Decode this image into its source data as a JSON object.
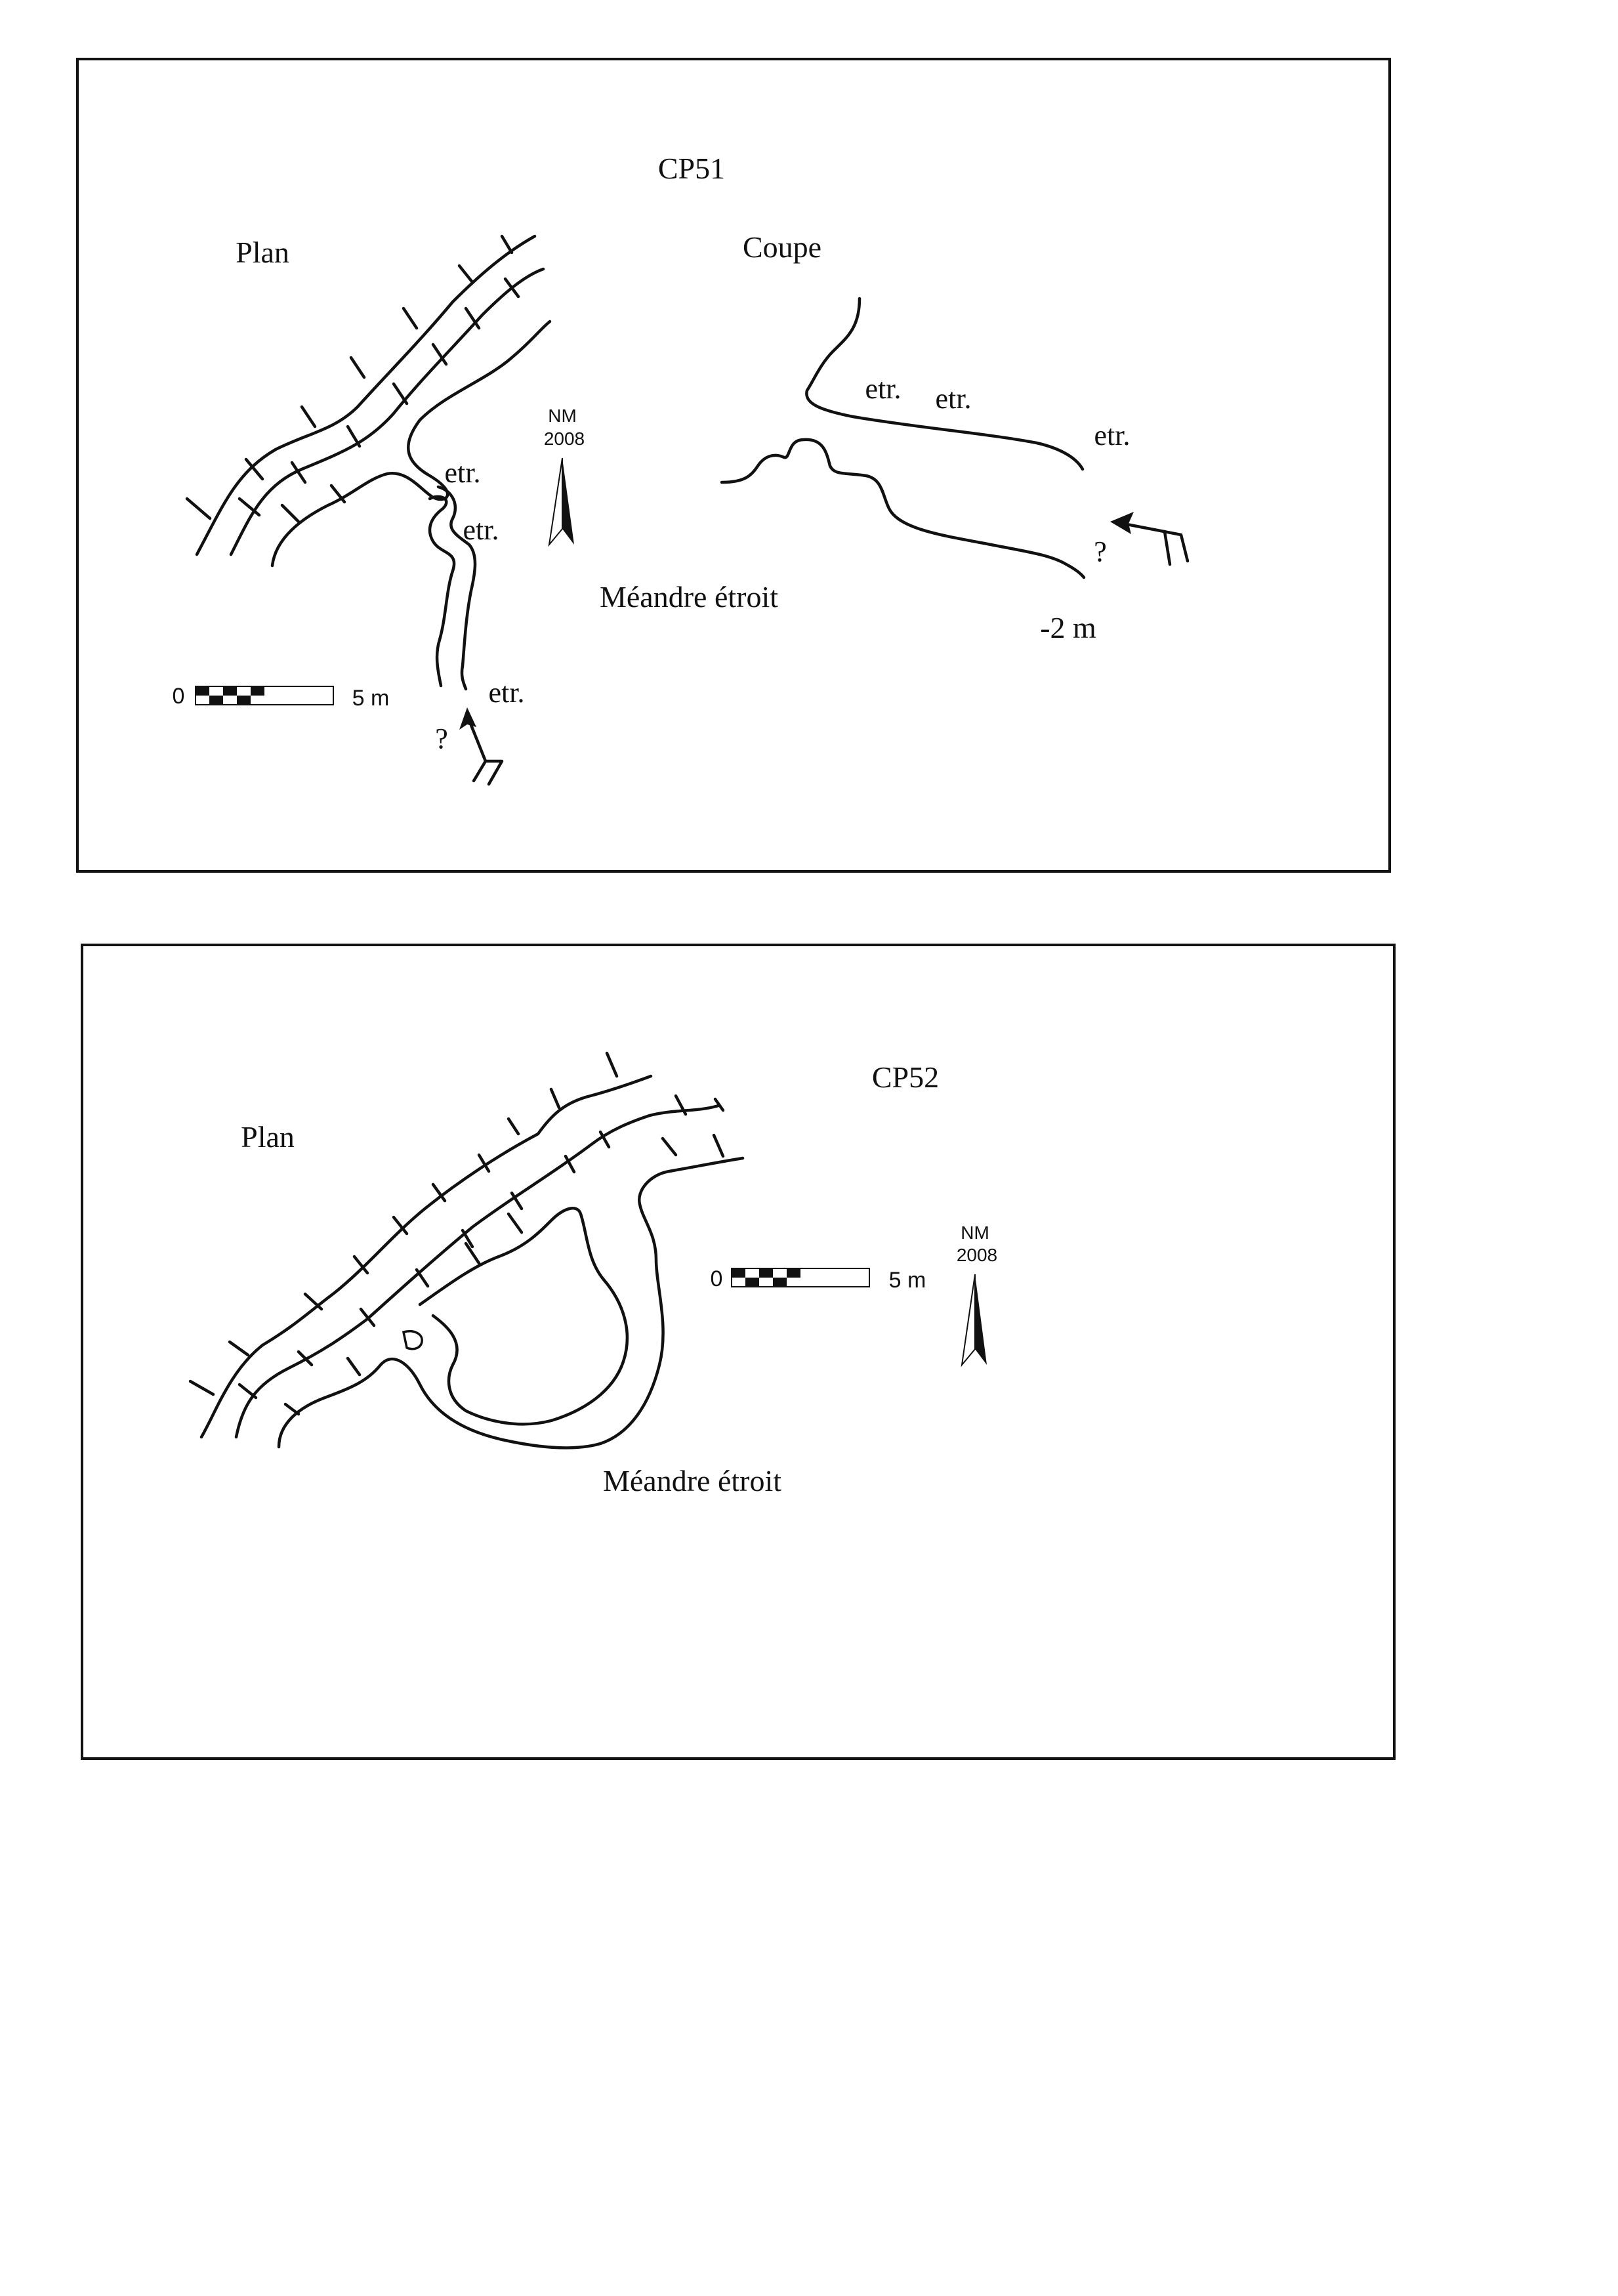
{
  "panels": [
    {
      "id": "CP51",
      "title": "CP51",
      "plan_label": "Plan",
      "section_label": "Coupe",
      "feature_label": "Méandre étroit",
      "narrow_labels": [
        "etr.",
        "etr.",
        "etr.",
        "etr.",
        "etr.",
        "etr."
      ],
      "question_marks": [
        "?",
        "?"
      ],
      "depth_label": "-2 m",
      "north": {
        "label": "NM",
        "year": "2008"
      },
      "scale": {
        "start": "0",
        "end": "5 m"
      }
    },
    {
      "id": "CP52",
      "title": "CP52",
      "plan_label": "Plan",
      "feature_label": "Méandre étroit",
      "north": {
        "label": "NM",
        "year": "2008"
      },
      "scale": {
        "start": "0",
        "end": "5 m"
      }
    }
  ],
  "colors": {
    "ink": "#111111",
    "paper": "#ffffff"
  }
}
